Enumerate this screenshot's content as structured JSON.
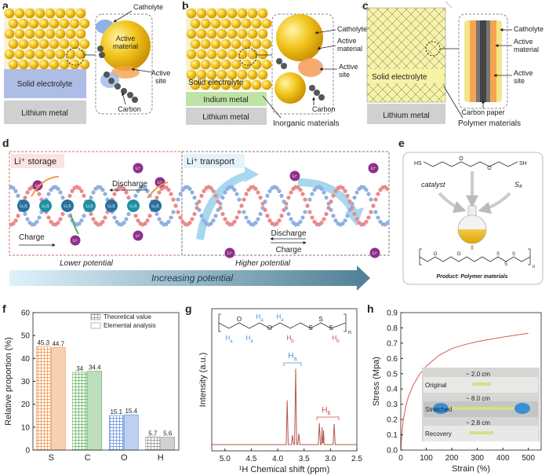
{
  "panels": {
    "a": {
      "label": "a",
      "catholyte": "Catholyte",
      "active_material": [
        "Active",
        "material"
      ],
      "active_site": [
        "Active",
        "site"
      ],
      "carbon": "Carbon",
      "solid_electrolyte": "Solid electrolyte",
      "lithium_metal": "Lithium metal"
    },
    "b": {
      "label": "b",
      "catholyte": "Catholyte",
      "active_material": [
        "Active",
        "material"
      ],
      "active_site": [
        "Active",
        "site"
      ],
      "carbon": "Carbon",
      "solid_electrolyte": "Solid electrolyte",
      "indium_metal": "Indium metal",
      "lithium_metal": "Lithium metal",
      "inorganic": "Inorganic materials"
    },
    "c": {
      "label": "c",
      "catholyte": "Catholyte",
      "active_material": [
        "Active",
        "material"
      ],
      "active_site": [
        "Active",
        "site"
      ],
      "carbon_paper": "Carbon paper",
      "solid_electrolyte": "Solid electrolyte",
      "lithium_metal": "Lithium metal",
      "polymer": "Polymer materials"
    },
    "d": {
      "label": "d",
      "storage": "Li⁺ storage",
      "transport": "Li⁺ transport",
      "discharge": "Discharge",
      "charge": "Charge",
      "li_ion": "Li⁺",
      "li2s": "Li₂S",
      "lower": "Lower potential",
      "increasing": "Increasing potential",
      "higher": "Higher potential"
    },
    "e": {
      "label": "e",
      "hs": "HS",
      "sh": "SH",
      "monomer_atoms": [
        "O",
        "O"
      ],
      "catalyst": "catalyst",
      "s8": "S₈",
      "polymer_atoms": [
        "O",
        "O",
        "S",
        "S",
        "S"
      ],
      "n": "n",
      "product": "Product: Polymer materials"
    },
    "f": {
      "label": "f"
    },
    "g": {
      "label": "g"
    },
    "h": {
      "label": "h"
    }
  },
  "chart_data": [
    {
      "type": "bar",
      "ylabel": "Relative proportion (%)",
      "categories": [
        "S",
        "C",
        "O",
        "H"
      ],
      "category_colors": [
        "#ee8a3e",
        "#5aad5a",
        "#5b8ad9",
        "#8c8c8c"
      ],
      "series": [
        {
          "name": "Theoretical value",
          "hatch": true,
          "values": [
            45.3,
            34,
            15.1,
            5.7
          ]
        },
        {
          "name": "Elemental analysis",
          "hatch": false,
          "values": [
            44.7,
            34.4,
            15.4,
            5.6
          ]
        }
      ],
      "ylim": [
        0,
        60
      ],
      "yticks": [
        0,
        10,
        20,
        30,
        40,
        50,
        60
      ]
    },
    {
      "type": "line",
      "xlabel": "¹H Chemical shift (ppm)",
      "ylabel": "Intensity (a.u.)",
      "color": "#b5574f",
      "x": [
        5.25,
        3.84,
        3.82,
        3.8,
        3.74,
        3.72,
        3.7,
        3.68,
        3.66,
        3.64,
        3.62,
        3.6,
        3.58,
        3.23,
        3.21,
        3.19,
        3.17,
        3.16,
        3.15,
        3.14,
        3.13,
        3.12,
        2.95,
        2.93,
        2.91,
        2.5
      ],
      "values": [
        8,
        8,
        64,
        8,
        8,
        20,
        8,
        8,
        104,
        8,
        8,
        22,
        8,
        8,
        35,
        8,
        8,
        30,
        10,
        10,
        26,
        8,
        8,
        34,
        8,
        8
      ],
      "xlim": [
        5.25,
        2.5
      ],
      "ylim": [
        0,
        180
      ],
      "xticks": [
        {
          "value": 5,
          "label": "5.0"
        },
        4.5,
        {
          "value": 4,
          "label": "4.0"
        },
        3.5,
        {
          "value": 3,
          "label": "3.0"
        },
        2.5
      ],
      "formula": {
        "atoms": [
          "O",
          "O",
          "S",
          "S",
          "S"
        ],
        "n": "n",
        "protons": [
          {
            "H": "H",
            "sub": "a"
          },
          {
            "H": "H",
            "sub": "a"
          },
          {
            "H": "H",
            "sub": "a"
          },
          {
            "H": "H",
            "sub": "a"
          },
          {
            "H": "H",
            "sub": "b"
          },
          {
            "H": "H",
            "sub": "b"
          }
        ]
      },
      "peak_labels": [
        {
          "H": "H",
          "sub": "a"
        },
        {
          "H": "H",
          "sub": "b"
        }
      ]
    },
    {
      "type": "line",
      "xlabel": "Strain (%)",
      "ylabel": "Stress (Mpa)",
      "color": "#d45a55",
      "x": [
        0,
        5,
        10,
        20,
        30,
        50,
        75,
        100,
        150,
        200,
        250,
        300,
        400,
        500
      ],
      "values": [
        0,
        0.12,
        0.2,
        0.29,
        0.35,
        0.43,
        0.5,
        0.55,
        0.62,
        0.665,
        0.69,
        0.71,
        0.74,
        0.765
      ],
      "xlim": [
        0,
        550
      ],
      "ylim": [
        0,
        0.9
      ],
      "xticks": [
        0,
        100,
        200,
        300,
        400,
        500
      ],
      "yticks": [
        {
          "value": 0,
          "label": "0.0"
        },
        0.1,
        0.2,
        0.3,
        0.4,
        0.5,
        0.6,
        0.7,
        0.8,
        0.9
      ],
      "inset": {
        "lengths": [
          "~ 2.0 cm",
          "~ 8.0 cm",
          "~ 2.8 cm"
        ],
        "states": [
          "Original",
          "Stretched",
          "Recovery"
        ]
      }
    }
  ]
}
